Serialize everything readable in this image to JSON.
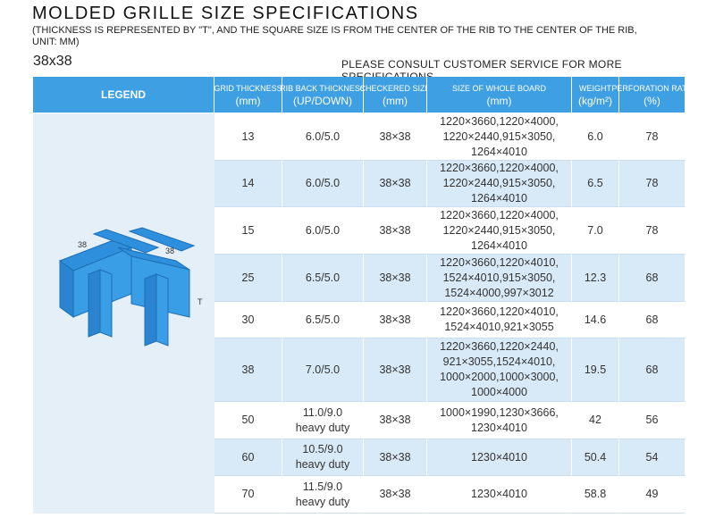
{
  "header": {
    "title": "MOLDED GRILLE SIZE SPECIFICATIONS",
    "subtitle": [
      "(THICKNESS IS REPRESENTED BY \"T\", AND THE SQUARE SIZE IS FROM THE CENTER OF THE RIB TO THE CENTER OF THE RIB,",
      "UNIT: MM)"
    ],
    "size": "38x38",
    "note": "PLEASE CONSULT CUSTOMER SERVICE FOR MORE SPECIFICATIONS"
  },
  "legend": {
    "labels": [
      "38",
      "38",
      "T"
    ]
  },
  "table": {
    "columns": [
      [
        "LEGEND"
      ],
      [
        "GRID THICKNESS",
        "(mm)"
      ],
      [
        "RIB BACK THICKNESS",
        "(UP/DOWN)"
      ],
      [
        "CHECKERED SIZE",
        "(mm)"
      ],
      [
        "SIZE OF WHOLE BOARD",
        "(mm)"
      ],
      [
        "WEIGHT",
        "(kg/m²)"
      ],
      [
        "PERFORATION RATE",
        "(%)"
      ]
    ],
    "rows": [
      [
        [
          "13"
        ],
        [
          "6.0/5.0"
        ],
        [
          "38×38"
        ],
        [
          "1220×3660,1220×4000,",
          "1220×2440,915×3050,",
          "1264×4010"
        ],
        [
          "6.0"
        ],
        [
          "78"
        ]
      ],
      [
        [
          "14"
        ],
        [
          "6.0/5.0"
        ],
        [
          "38×38"
        ],
        [
          "1220×3660,1220×4000,",
          "1220×2440,915×3050,",
          "1264×4010"
        ],
        [
          "6.5"
        ],
        [
          "78"
        ]
      ],
      [
        [
          "15"
        ],
        [
          "6.0/5.0"
        ],
        [
          "38×38"
        ],
        [
          "1220×3660,1220×4000,",
          "1220×2440,915×3050,",
          "1264×4010"
        ],
        [
          "7.0"
        ],
        [
          "78"
        ]
      ],
      [
        [
          "25"
        ],
        [
          "6.5/5.0"
        ],
        [
          "38×38"
        ],
        [
          "1220×3660,1220×4010,",
          "1524×4010,915×3050,",
          "1524×4000,997×3012"
        ],
        [
          "12.3"
        ],
        [
          "68"
        ]
      ],
      [
        [
          "30"
        ],
        [
          "6.5/5.0"
        ],
        [
          "38×38"
        ],
        [
          "1220×3660,1220×4010,",
          "1524×4010,921×3055"
        ],
        [
          "14.6"
        ],
        [
          "68"
        ]
      ],
      [
        [
          "38"
        ],
        [
          "7.0/5.0"
        ],
        [
          "38×38"
        ],
        [
          "1220×3660,1220×2440,",
          "921×3055,1524×4010,",
          "1000×2000,1000×3000,",
          "1000×4000"
        ],
        [
          "19.5"
        ],
        [
          "68"
        ]
      ],
      [
        [
          "50"
        ],
        [
          "11.0/9.0",
          "heavy duty"
        ],
        [
          "38×38"
        ],
        [
          "1000×1990,1230×3666,",
          "1230×4010"
        ],
        [
          "42"
        ],
        [
          "56"
        ]
      ],
      [
        [
          "60"
        ],
        [
          "10.5/9.0",
          "heavy duty"
        ],
        [
          "38×38"
        ],
        [
          "1230×4010"
        ],
        [
          "50.4"
        ],
        [
          "54"
        ]
      ],
      [
        [
          "70"
        ],
        [
          "11.5/9.0",
          "heavy duty"
        ],
        [
          "38×38"
        ],
        [
          "1230×4010"
        ],
        [
          "58.8"
        ],
        [
          "49"
        ]
      ]
    ]
  }
}
